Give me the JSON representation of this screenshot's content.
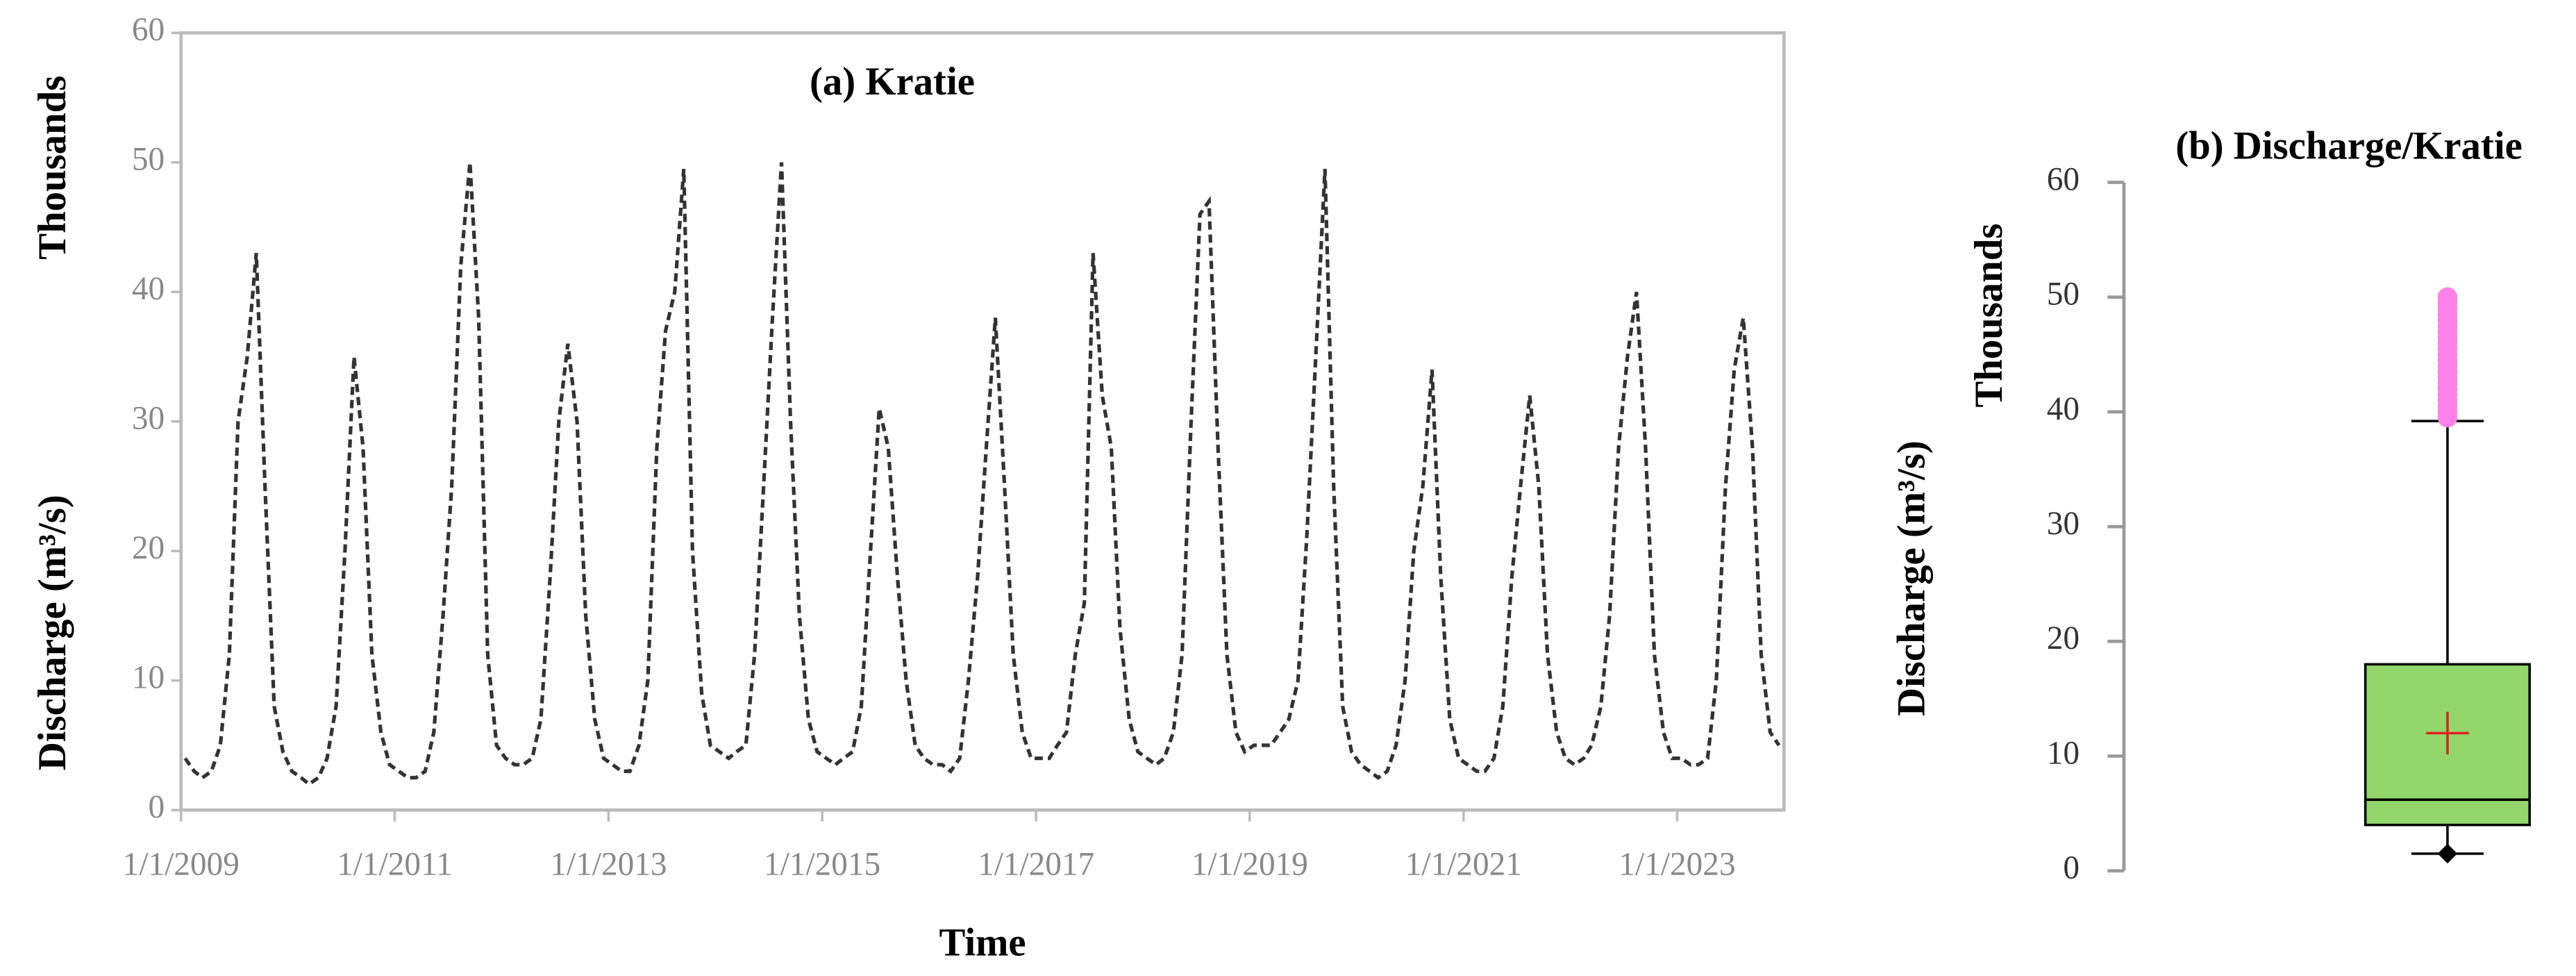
{
  "chart_data": [
    {
      "type": "line",
      "title": "(a) Kratie",
      "xlabel": "Time",
      "ylabel": "Discharge (m³/s)",
      "yunit": "Thousands",
      "x": [
        "1/15/2009",
        "2/15/2009",
        "3/15/2009",
        "4/15/2009",
        "5/15/2009",
        "6/15/2009",
        "7/15/2009",
        "8/15/2009",
        "9/15/2009",
        "10/15/2009",
        "11/15/2009",
        "12/15/2009",
        "1/15/2010",
        "2/15/2010",
        "3/15/2010",
        "4/15/2010",
        "5/15/2010",
        "6/15/2010",
        "7/15/2010",
        "8/15/2010",
        "9/15/2010",
        "10/15/2010",
        "11/15/2010",
        "12/15/2010",
        "1/15/2011",
        "2/15/2011",
        "3/15/2011",
        "4/15/2011",
        "5/15/2011",
        "6/15/2011",
        "7/15/2011",
        "8/15/2011",
        "9/15/2011",
        "10/15/2011",
        "11/15/2011",
        "12/15/2011",
        "1/15/2012",
        "2/15/2012",
        "3/15/2012",
        "4/15/2012",
        "5/15/2012",
        "6/15/2012",
        "7/15/2012",
        "8/15/2012",
        "9/15/2012",
        "10/15/2012",
        "11/15/2012",
        "12/15/2012",
        "1/15/2013",
        "2/15/2013",
        "3/15/2013",
        "4/15/2013",
        "5/15/2013",
        "6/15/2013",
        "7/15/2013",
        "8/15/2013",
        "9/15/2013",
        "10/15/2013",
        "11/15/2013",
        "12/15/2013",
        "1/15/2014",
        "2/15/2014",
        "3/15/2014",
        "4/15/2014",
        "5/15/2014",
        "6/15/2014",
        "7/15/2014",
        "8/15/2014",
        "9/15/2014",
        "10/15/2014",
        "11/15/2014",
        "12/15/2014",
        "1/15/2015",
        "2/15/2015",
        "3/15/2015",
        "4/15/2015",
        "5/15/2015",
        "6/15/2015",
        "7/15/2015",
        "8/15/2015",
        "9/15/2015",
        "10/15/2015",
        "11/15/2015",
        "12/15/2015",
        "1/15/2016",
        "2/15/2016",
        "3/15/2016",
        "4/15/2016",
        "5/15/2016",
        "6/15/2016",
        "7/15/2016",
        "8/15/2016",
        "9/15/2016",
        "10/15/2016",
        "11/15/2016",
        "12/15/2016",
        "1/15/2017",
        "2/15/2017",
        "3/15/2017",
        "4/15/2017",
        "5/15/2017",
        "6/15/2017",
        "7/15/2017",
        "8/15/2017",
        "9/15/2017",
        "10/15/2017",
        "11/15/2017",
        "12/15/2017",
        "1/15/2018",
        "2/15/2018",
        "3/15/2018",
        "4/15/2018",
        "5/15/2018",
        "6/15/2018",
        "7/15/2018",
        "8/15/2018",
        "9/15/2018",
        "10/15/2018",
        "11/15/2018",
        "12/15/2018",
        "1/15/2019",
        "2/15/2019",
        "3/15/2019",
        "4/15/2019",
        "5/15/2019",
        "6/15/2019",
        "7/15/2019",
        "8/15/2019",
        "9/15/2019",
        "10/15/2019",
        "11/15/2019",
        "12/15/2019",
        "1/15/2020",
        "2/15/2020",
        "3/15/2020",
        "4/15/2020",
        "5/15/2020",
        "6/15/2020",
        "7/15/2020",
        "8/15/2020",
        "9/15/2020",
        "10/15/2020",
        "11/15/2020",
        "12/15/2020",
        "1/15/2021",
        "2/15/2021",
        "3/15/2021",
        "4/15/2021",
        "5/15/2021",
        "6/15/2021",
        "7/15/2021",
        "8/15/2021",
        "9/15/2021",
        "10/15/2021",
        "11/15/2021",
        "12/15/2021",
        "1/15/2022",
        "2/15/2022",
        "3/15/2022",
        "4/15/2022",
        "5/15/2022",
        "6/15/2022",
        "7/15/2022",
        "8/15/2022",
        "9/15/2022",
        "10/15/2022",
        "11/15/2022",
        "12/15/2022",
        "1/15/2023",
        "2/15/2023",
        "3/15/2023",
        "4/15/2023",
        "5/15/2023",
        "6/15/2023",
        "7/15/2023",
        "8/15/2023",
        "9/15/2023",
        "10/15/2023",
        "11/15/2023",
        "12/15/2023"
      ],
      "series": [
        {
          "color": "#333333",
          "values": [
            4,
            3,
            2.5,
            3,
            5,
            12,
            30,
            35,
            43,
            25,
            8,
            4.5,
            3,
            2.5,
            2,
            2.5,
            4,
            8,
            20,
            35,
            28,
            12,
            6,
            3.5,
            3,
            2.5,
            2.5,
            3,
            6,
            15,
            25,
            42,
            50,
            38,
            12,
            5,
            4,
            3.5,
            3.5,
            4,
            7,
            18,
            30,
            36,
            30,
            15,
            7,
            4,
            3.5,
            3,
            3,
            5,
            10,
            28,
            37,
            40,
            49.5,
            20,
            9,
            5,
            4.5,
            4,
            4.5,
            5,
            12,
            25,
            38,
            50,
            30,
            15,
            7,
            4.5,
            4,
            3.5,
            4,
            4.5,
            8,
            20,
            31,
            28,
            18,
            10,
            5,
            4,
            3.5,
            3.5,
            3,
            4,
            10,
            18,
            28,
            38,
            25,
            12,
            6,
            4,
            4,
            4,
            5,
            6,
            12,
            16,
            43,
            32,
            28,
            14,
            7,
            4.5,
            4,
            3.5,
            4,
            6,
            12,
            30,
            46,
            47,
            28,
            12,
            6,
            4.5,
            5,
            5,
            5,
            6,
            7,
            10,
            21,
            35,
            49.5,
            25,
            8,
            4.5,
            3.5,
            3,
            2.5,
            3,
            5,
            10,
            20,
            25,
            34,
            18,
            7,
            4,
            3.5,
            3,
            3,
            4,
            8,
            18,
            25,
            32,
            25,
            12,
            6,
            4,
            3.5,
            4,
            5,
            8,
            15,
            28,
            35,
            40,
            28,
            12,
            6,
            4,
            4,
            3.5,
            3.5,
            4,
            10,
            25,
            34,
            38,
            28,
            12,
            6,
            5
          ]
        }
      ],
      "xlim": [
        "1/1/2009",
        "1/1/2024"
      ],
      "xticks": [
        "1/1/2009",
        "1/1/2011",
        "1/1/2013",
        "1/1/2015",
        "1/1/2017",
        "1/1/2019",
        "1/1/2021",
        "1/1/2023"
      ],
      "ylim": [
        0,
        60
      ],
      "yticks": [
        0,
        10,
        20,
        30,
        40,
        50,
        60
      ]
    },
    {
      "type": "box",
      "title": "(b) Discharge/Kratie",
      "ylabel": "Discharge (m³/s)",
      "yunit": "Thousands",
      "whisker_low": 1.5,
      "q1": 4,
      "median": 6.2,
      "q3": 18,
      "mean": 12,
      "whisker_high": 39.2,
      "outliers": [
        39.5,
        40,
        40.5,
        41,
        41.5,
        42,
        42.5,
        43,
        43.5,
        44,
        44.5,
        45,
        45.5,
        46,
        46.5,
        47,
        47.5,
        48,
        48.5,
        49,
        49.5,
        50
      ],
      "box_color": "#92d66c",
      "outlier_color": "#ff80e8",
      "mean_color": "#e02020",
      "ylim": [
        0,
        60
      ],
      "yticks": [
        0,
        10,
        20,
        30,
        40,
        50,
        60
      ]
    }
  ]
}
